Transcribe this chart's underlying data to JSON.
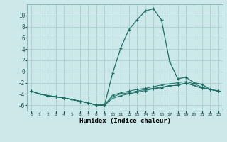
{
  "xlabel": "Humidex (Indice chaleur)",
  "background_color": "#cce8e8",
  "grid_color": "#aacfcf",
  "line_color": "#1a6e64",
  "xlim": [
    -0.5,
    23.5
  ],
  "ylim": [
    -7,
    12
  ],
  "xticks": [
    0,
    1,
    2,
    3,
    4,
    5,
    6,
    7,
    8,
    9,
    10,
    11,
    12,
    13,
    14,
    15,
    16,
    17,
    18,
    19,
    20,
    21,
    22,
    23
  ],
  "yticks": [
    -6,
    -4,
    -2,
    0,
    2,
    4,
    6,
    8,
    10
  ],
  "line1_x": [
    0,
    1,
    2,
    3,
    4,
    5,
    6,
    7,
    8,
    9,
    10,
    11,
    12,
    13,
    14,
    15,
    16,
    17,
    18,
    19,
    20,
    21,
    22,
    23
  ],
  "line1_y": [
    -3.5,
    -4.0,
    -4.3,
    -4.5,
    -4.7,
    -5.0,
    -5.3,
    -5.6,
    -6.0,
    -6.0,
    -0.3,
    4.2,
    7.5,
    9.2,
    10.8,
    11.2,
    9.2,
    1.8,
    -1.3,
    -1.0,
    -2.0,
    -2.3,
    -3.2,
    -3.5
  ],
  "line2_x": [
    0,
    1,
    2,
    3,
    4,
    5,
    6,
    7,
    8,
    9,
    10,
    11,
    12,
    13,
    14,
    15,
    16,
    17,
    18,
    19,
    20,
    21,
    22,
    23
  ],
  "line2_y": [
    -3.5,
    -4.0,
    -4.3,
    -4.5,
    -4.7,
    -5.0,
    -5.3,
    -5.6,
    -6.0,
    -6.0,
    -4.5,
    -4.0,
    -3.8,
    -3.5,
    -3.2,
    -3.0,
    -2.8,
    -2.5,
    -2.5,
    -2.0,
    -2.5,
    -3.0,
    -3.2,
    -3.5
  ],
  "line3_x": [
    0,
    1,
    2,
    3,
    4,
    5,
    6,
    7,
    8,
    9,
    10,
    11,
    12,
    13,
    14,
    15,
    16,
    17,
    18,
    19,
    20,
    21,
    22,
    23
  ],
  "line3_y": [
    -3.5,
    -4.0,
    -4.3,
    -4.5,
    -4.7,
    -5.0,
    -5.3,
    -5.6,
    -6.0,
    -6.0,
    -4.2,
    -3.8,
    -3.5,
    -3.2,
    -3.0,
    -2.7,
    -2.4,
    -2.2,
    -2.0,
    -1.8,
    -2.2,
    -2.8,
    -3.2,
    -3.5
  ],
  "line4_x": [
    0,
    1,
    2,
    3,
    4,
    5,
    6,
    7,
    8,
    9,
    10,
    11,
    12,
    13,
    14,
    15,
    16,
    17,
    18,
    19,
    20,
    21,
    22,
    23
  ],
  "line4_y": [
    -3.5,
    -4.0,
    -4.3,
    -4.5,
    -4.7,
    -5.0,
    -5.3,
    -5.6,
    -6.0,
    -6.0,
    -4.8,
    -4.3,
    -4.0,
    -3.7,
    -3.4,
    -3.1,
    -2.9,
    -2.6,
    -2.4,
    -2.1,
    -2.5,
    -3.0,
    -3.2,
    -3.5
  ]
}
